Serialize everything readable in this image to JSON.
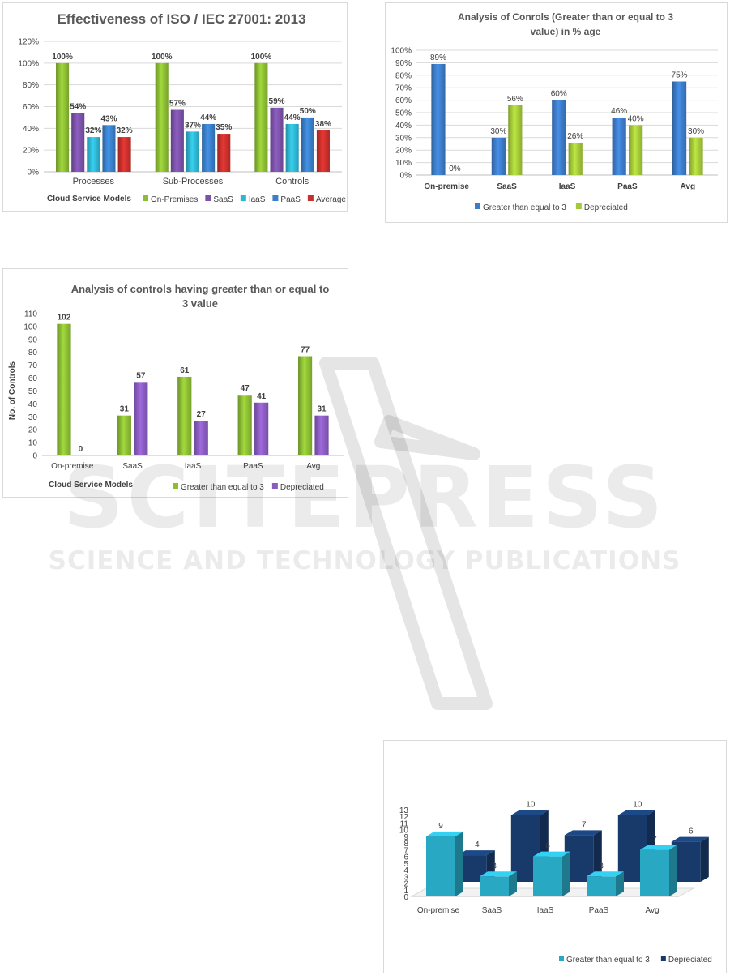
{
  "watermark": {
    "big": "SCITEPRESS",
    "small": "SCIENCE AND TECHNOLOGY PUBLICATIONS"
  },
  "chart_data": [
    {
      "type": "bar",
      "title": "Effectiveness of ISO / IEC 27001: 2013",
      "xlabel": "Cloud  Service Models",
      "ylabel": "",
      "categories": [
        "Processes",
        "Sub-Processes",
        "Controls"
      ],
      "yticks": [
        "0%",
        "20%",
        "40%",
        "60%",
        "80%",
        "100%",
        "120%"
      ],
      "ylim": [
        0,
        120
      ],
      "series": [
        {
          "name": "On-Premises",
          "color": "#8cbd34",
          "values": [
            100,
            100,
            100
          ],
          "labels": [
            "100%",
            "100%",
            "100%"
          ]
        },
        {
          "name": "SaaS",
          "color": "#7b52a8",
          "values": [
            54,
            57,
            59
          ],
          "labels": [
            "54%",
            "57%",
            "59%"
          ]
        },
        {
          "name": "IaaS",
          "color": "#2fb6d2",
          "values": [
            32,
            37,
            44
          ],
          "labels": [
            "32%",
            "37%",
            "44%"
          ]
        },
        {
          "name": "PaaS",
          "color": "#3a7fc9",
          "values": [
            43,
            44,
            50
          ],
          "labels": [
            "43%",
            "44%",
            "50%"
          ]
        },
        {
          "name": "Average",
          "color": "#c9302c",
          "values": [
            32,
            35,
            38
          ],
          "labels": [
            "32%",
            "35%",
            "38%"
          ]
        }
      ],
      "legend_position": "bottom-right",
      "grid": true
    },
    {
      "type": "bar",
      "title": "Analysis of  Conrols (Greater than or equal to 3 value) in % age",
      "title_lines": [
        "Analysis of  Conrols (Greater than or equal to 3",
        "value) in % age"
      ],
      "xlabel": "",
      "ylabel": "",
      "categories": [
        "On-premise",
        "SaaS",
        "IaaS",
        "PaaS",
        "Avg"
      ],
      "yticks": [
        "0%",
        "10%",
        "20%",
        "30%",
        "40%",
        "50%",
        "60%",
        "70%",
        "80%",
        "90%",
        "100%"
      ],
      "ylim": [
        0,
        100
      ],
      "series": [
        {
          "name": "Greater than equal to  3",
          "color": "#3d7cc9",
          "values": [
            89,
            30,
            60,
            46,
            75
          ],
          "labels": [
            "89%",
            "30%",
            "60%",
            "46%",
            "75%"
          ]
        },
        {
          "name": "Depreciated",
          "color": "#a4c93a",
          "values": [
            0,
            56,
            26,
            40,
            30
          ],
          "labels": [
            "0%",
            "56%",
            "26%",
            "40%",
            "30%"
          ]
        }
      ],
      "legend_position": "bottom",
      "grid": true
    },
    {
      "type": "bar",
      "title": "Analysis of controls having greater than or equal to 3 value",
      "title_lines": [
        "Analysis of controls having greater than or equal to",
        "3 value"
      ],
      "xlabel": "Cloud  Service Models",
      "ylabel": "No. of Controls",
      "categories": [
        "On-premise",
        "SaaS",
        "IaaS",
        "PaaS",
        "Avg"
      ],
      "yticks": [
        "0",
        "10",
        "20",
        "30",
        "40",
        "50",
        "60",
        "70",
        "80",
        "90",
        "100",
        "110"
      ],
      "ylim": [
        0,
        110
      ],
      "series": [
        {
          "name": "Greater than equal to  3",
          "color": "#8cbd34",
          "values": [
            102,
            31,
            61,
            47,
            77
          ],
          "labels": [
            "102",
            "31",
            "61",
            "47",
            "77"
          ]
        },
        {
          "name": "Depreciated",
          "color": "#8a5cc0",
          "values": [
            0,
            57,
            27,
            41,
            31
          ],
          "labels": [
            "0",
            "57",
            "27",
            "41",
            "31"
          ]
        }
      ],
      "legend_position": "bottom-right",
      "grid": false
    },
    {
      "type": "bar",
      "title": "",
      "xlabel": "",
      "ylabel": "",
      "categories": [
        "On-premise",
        "SaaS",
        "IaaS",
        "PaaS",
        "Avg"
      ],
      "yticks": [
        "0",
        "1",
        "2",
        "3",
        "4",
        "5",
        "6",
        "7",
        "8",
        "9",
        "10",
        "11",
        "12",
        "13"
      ],
      "ylim": [
        0,
        13
      ],
      "series": [
        {
          "name": "Greater than equal to 3",
          "color": "#29a8c4",
          "values": [
            9,
            3,
            6,
            3,
            7
          ],
          "labels": [
            "9",
            "3",
            "6",
            "3",
            "7"
          ]
        },
        {
          "name": "Depreciated",
          "color": "#173a6b",
          "values": [
            4,
            10,
            7,
            10,
            6
          ],
          "labels": [
            "4",
            "10",
            "7",
            "10",
            "6"
          ]
        }
      ],
      "legend_position": "bottom-right",
      "grid": false,
      "style": "3d"
    }
  ]
}
